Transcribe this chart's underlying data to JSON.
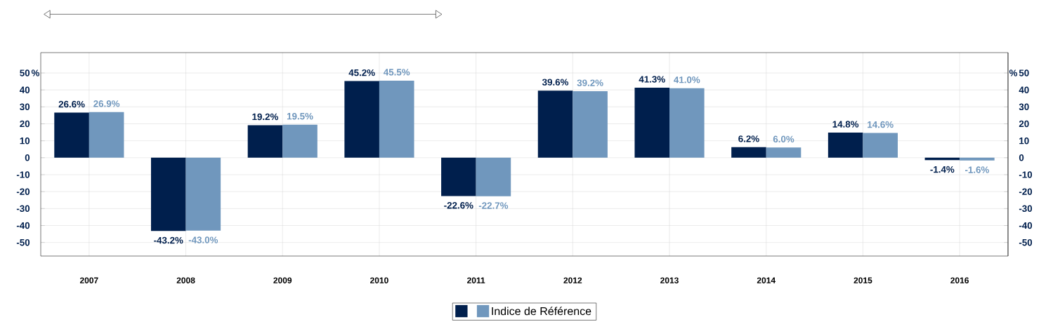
{
  "chart_data": {
    "type": "bar",
    "ylabel": "%",
    "y2label": "%",
    "categories": [
      "2007",
      "2008",
      "2009",
      "2010",
      "2011",
      "2012",
      "2013",
      "2014",
      "2015",
      "2016"
    ],
    "series": [
      {
        "color": "#001f4d",
        "values": [
          26.6,
          -43.2,
          19.2,
          45.2,
          -22.6,
          39.6,
          41.3,
          6.2,
          14.8,
          -1.4
        ],
        "value_labels": [
          "26.6%",
          "-43.2%",
          "19.2%",
          "45.2%",
          "-22.6%",
          "39.6%",
          "41.3%",
          "6.2%",
          "14.8%",
          "-1.4%"
        ]
      },
      {
        "name": "Indice de Référence",
        "color": "#7097bd",
        "values": [
          26.9,
          -43.0,
          19.5,
          45.5,
          -22.7,
          39.2,
          41.0,
          6.0,
          14.6,
          -1.6
        ],
        "value_labels": [
          "26.9%",
          "-43.0%",
          "19.5%",
          "45.5%",
          "-22.7%",
          "39.2%",
          "41.0%",
          "6.0%",
          "14.6%",
          "-1.6%"
        ]
      }
    ],
    "ylim": [
      -58,
      62
    ],
    "yticks": [
      -50,
      -40,
      -30,
      -20,
      -10,
      0,
      10,
      20,
      30,
      40,
      50
    ],
    "y2lim": [
      -58,
      62
    ],
    "y2ticks": [
      -50,
      -40,
      -30,
      -20,
      -10,
      0,
      10,
      20,
      30,
      40,
      50
    ],
    "grid": true,
    "legend": "bottom"
  }
}
